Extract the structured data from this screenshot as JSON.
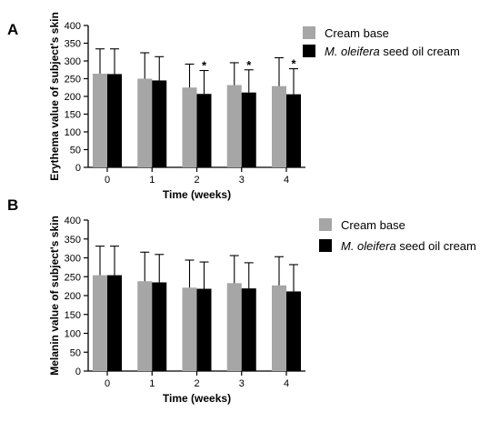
{
  "panel_labels": [
    "A",
    "B"
  ],
  "legend": {
    "series": [
      {
        "label": "Cream base",
        "italic_prefix": "",
        "color": "#a6a6a6"
      },
      {
        "label": " seed oil cream",
        "italic_prefix": "M. oleifera",
        "color": "#000000"
      }
    ]
  },
  "chart_data": [
    {
      "panel": "A",
      "type": "bar",
      "xlabel": "Time (weeks)",
      "ylabel": "Erythema value of subject's skin",
      "categories": [
        "0",
        "1",
        "2",
        "3",
        "4"
      ],
      "ylim": [
        0,
        400
      ],
      "yticks": [
        0,
        50,
        100,
        150,
        200,
        250,
        300,
        350,
        400
      ],
      "error_bars": "upper",
      "grid": false,
      "legend_position": "top-right",
      "series": [
        {
          "name": "Cream base",
          "color": "#a6a6a6",
          "values": [
            264,
            250,
            225,
            232,
            229
          ],
          "errors": [
            70,
            73,
            66,
            63,
            80
          ]
        },
        {
          "name": "M. oleifera seed oil cream",
          "color": "#000000",
          "values": [
            263,
            245,
            207,
            211,
            206
          ],
          "errors": [
            71,
            67,
            66,
            64,
            72
          ]
        }
      ],
      "significance": [
        {
          "category": "2",
          "series": "M. oleifera seed oil cream",
          "mark": "*"
        },
        {
          "category": "3",
          "series": "M. oleifera seed oil cream",
          "mark": "*"
        },
        {
          "category": "4",
          "series": "M. oleifera seed oil cream",
          "mark": "*"
        }
      ]
    },
    {
      "panel": "B",
      "type": "bar",
      "xlabel": "Time (weeks)",
      "ylabel": "Melanin value of subject's skin",
      "categories": [
        "0",
        "1",
        "2",
        "3",
        "4"
      ],
      "ylim": [
        0,
        400
      ],
      "yticks": [
        0,
        50,
        100,
        150,
        200,
        250,
        300,
        350,
        400
      ],
      "error_bars": "upper",
      "grid": false,
      "legend_position": "top-right",
      "series": [
        {
          "name": "Cream base",
          "color": "#a6a6a6",
          "values": [
            254,
            238,
            221,
            233,
            227
          ],
          "errors": [
            77,
            77,
            73,
            73,
            76
          ]
        },
        {
          "name": "M. oleifera seed oil cream",
          "color": "#000000",
          "values": [
            254,
            235,
            218,
            219,
            211
          ],
          "errors": [
            77,
            74,
            71,
            68,
            71
          ]
        }
      ],
      "significance": []
    }
  ]
}
